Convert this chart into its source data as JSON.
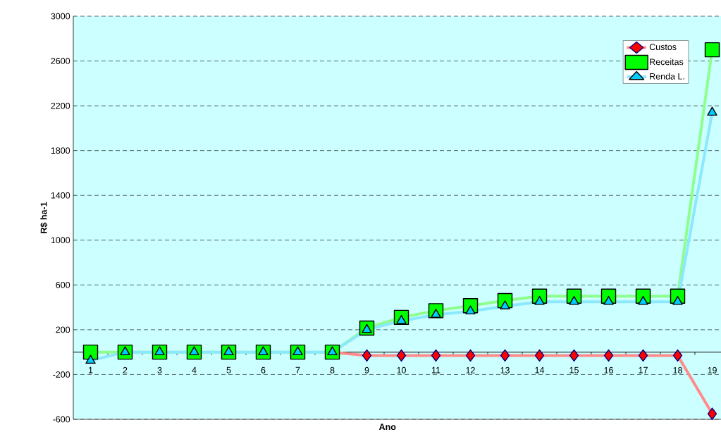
{
  "chart_data": {
    "type": "line",
    "xlabel": "Ano",
    "ylabel": "R$ ha-1",
    "categories": [
      "1",
      "2",
      "3",
      "4",
      "5",
      "6",
      "7",
      "8",
      "9",
      "10",
      "11",
      "12",
      "13",
      "14",
      "15",
      "16",
      "17",
      "18",
      "19"
    ],
    "series": [
      {
        "name": "Custos",
        "color": "#ff0000",
        "marker": "diamond",
        "values": [
          null,
          null,
          null,
          null,
          null,
          null,
          null,
          0,
          -30,
          -30,
          -30,
          -30,
          -30,
          -30,
          -30,
          -30,
          -30,
          -30,
          -550
        ]
      },
      {
        "name": "Receitas",
        "color": "#00ff00",
        "marker": "square",
        "values": [
          0,
          0,
          0,
          0,
          0,
          0,
          0,
          0,
          215,
          310,
          370,
          415,
          460,
          500,
          500,
          500,
          500,
          500,
          2700
        ]
      },
      {
        "name": "Renda L.",
        "color": "#00ccff",
        "marker": "triangle",
        "values": [
          -75,
          0,
          0,
          0,
          0,
          0,
          0,
          0,
          200,
          280,
          335,
          365,
          410,
          450,
          450,
          450,
          450,
          450,
          2140
        ]
      }
    ],
    "ylim": [
      -600,
      3000
    ],
    "yticks": [
      -600,
      -200,
      200,
      600,
      1000,
      1400,
      1800,
      2200,
      2600,
      3000
    ],
    "grid": "y",
    "legend": "top right"
  }
}
